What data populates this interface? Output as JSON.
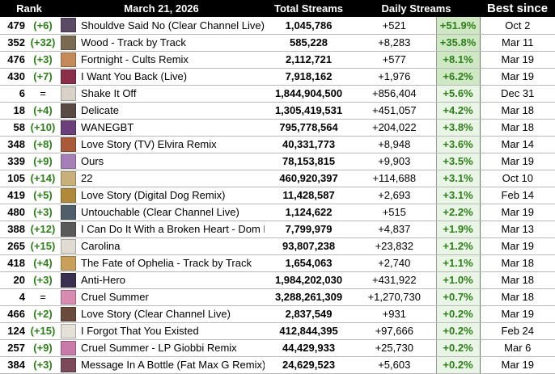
{
  "header": {
    "rank": "Rank",
    "date": "March 21, 2026",
    "total_streams": "Total Streams",
    "daily_streams": "Daily Streams",
    "best_since": "Best since"
  },
  "colors": {
    "change_text": "#2f7d1c",
    "pct_shade_strong": "#cde8c3",
    "pct_shade_light": "#eaf6e5",
    "header_bg": "#000000"
  },
  "rows": [
    {
      "rank": "479",
      "change": "(+6)",
      "cover": "#5b4a63",
      "title": "Shouldve Said No (Clear Channel Live)",
      "total": "1,045,786",
      "daily": "+521",
      "pct": "+51.9%",
      "pct_level": 1.0,
      "best": "Oct 2"
    },
    {
      "rank": "352",
      "change": "(+32)",
      "cover": "#7a6a52",
      "title": "Wood - Track by Track",
      "total": "585,228",
      "daily": "+8,283",
      "pct": "+35.8%",
      "pct_level": 0.9,
      "best": "Mar 11"
    },
    {
      "rank": "476",
      "change": "(+3)",
      "cover": "#c58a5a",
      "title": "Fortnight - Cults Remix",
      "total": "2,112,721",
      "daily": "+577",
      "pct": "+8.1%",
      "pct_level": 0.55,
      "best": "Mar 19"
    },
    {
      "rank": "430",
      "change": "(+7)",
      "cover": "#8a2f4a",
      "title": "I Want You Back (Live)",
      "total": "7,918,162",
      "daily": "+1,976",
      "pct": "+6.2%",
      "pct_level": 0.5,
      "best": "Mar 19"
    },
    {
      "rank": "6",
      "change": "=",
      "cover": "#d8d2c8",
      "title": "Shake It Off",
      "total": "1,844,904,500",
      "daily": "+856,404",
      "pct": "+5.6%",
      "pct_level": 0.45,
      "best": "Dec 31"
    },
    {
      "rank": "18",
      "change": "(+4)",
      "cover": "#5a4a44",
      "title": "Delicate",
      "total": "1,305,419,531",
      "daily": "+451,057",
      "pct": "+4.2%",
      "pct_level": 0.4,
      "best": "Mar 18"
    },
    {
      "rank": "58",
      "change": "(+10)",
      "cover": "#6b3f7a",
      "title": "WANEGBT",
      "total": "795,778,564",
      "daily": "+204,022",
      "pct": "+3.8%",
      "pct_level": 0.35,
      "best": "Mar 18"
    },
    {
      "rank": "348",
      "change": "(+8)",
      "cover": "#a85a3a",
      "title": "Love Story (TV) Elvira Remix",
      "total": "40,331,773",
      "daily": "+8,948",
      "pct": "+3.6%",
      "pct_level": 0.35,
      "best": "Mar 14"
    },
    {
      "rank": "339",
      "change": "(+9)",
      "cover": "#a77fb7",
      "title": "Ours",
      "total": "78,153,815",
      "daily": "+9,903",
      "pct": "+3.5%",
      "pct_level": 0.35,
      "best": "Mar 19"
    },
    {
      "rank": "105",
      "change": "(+14)",
      "cover": "#c8b07a",
      "title": "22",
      "total": "460,920,397",
      "daily": "+114,688",
      "pct": "+3.1%",
      "pct_level": 0.3,
      "best": "Oct 10"
    },
    {
      "rank": "419",
      "change": "(+5)",
      "cover": "#b08a3a",
      "title": "Love Story (Digital Dog Remix)",
      "total": "11,428,587",
      "daily": "+2,693",
      "pct": "+3.1%",
      "pct_level": 0.3,
      "best": "Feb 14"
    },
    {
      "rank": "480",
      "change": "(+3)",
      "cover": "#4f5f6a",
      "title": "Untouchable (Clear Channel Live)",
      "total": "1,124,622",
      "daily": "+515",
      "pct": "+2.2%",
      "pct_level": 0.25,
      "best": "Mar 19"
    },
    {
      "rank": "388",
      "change": "(+12)",
      "cover": "#5a5a5a",
      "title": "I Can Do It With a Broken Heart - Dom Dolla Remix",
      "total": "7,799,979",
      "daily": "+4,837",
      "pct": "+1.9%",
      "pct_level": 0.2,
      "best": "Mar 13"
    },
    {
      "rank": "265",
      "change": "(+15)",
      "cover": "#e0dcd4",
      "title": "Carolina",
      "total": "93,807,238",
      "daily": "+23,832",
      "pct": "+1.2%",
      "pct_level": 0.15,
      "best": "Mar 19"
    },
    {
      "rank": "418",
      "change": "(+4)",
      "cover": "#c9a05a",
      "title": "The Fate of Ophelia - Track by Track",
      "total": "1,654,063",
      "daily": "+2,740",
      "pct": "+1.1%",
      "pct_level": 0.15,
      "best": "Mar 18"
    },
    {
      "rank": "20",
      "change": "(+3)",
      "cover": "#3a3050",
      "title": "Anti-Hero",
      "total": "1,984,202,030",
      "daily": "+431,922",
      "pct": "+1.0%",
      "pct_level": 0.12,
      "best": "Mar 18"
    },
    {
      "rank": "4",
      "change": "=",
      "cover": "#d88ab0",
      "title": "Cruel Summer",
      "total": "3,288,261,309",
      "daily": "+1,270,730",
      "pct": "+0.7%",
      "pct_level": 0.08,
      "best": "Mar 18"
    },
    {
      "rank": "466",
      "change": "(+2)",
      "cover": "#6a4a3a",
      "title": "Love Story (Clear Channel Live)",
      "total": "2,837,549",
      "daily": "+931",
      "pct": "+0.2%",
      "pct_level": 0.05,
      "best": "Mar 19"
    },
    {
      "rank": "124",
      "change": "(+15)",
      "cover": "#e6e1d8",
      "title": "I Forgot That You Existed",
      "total": "412,844,395",
      "daily": "+97,666",
      "pct": "+0.2%",
      "pct_level": 0.05,
      "best": "Feb 24"
    },
    {
      "rank": "257",
      "change": "(+9)",
      "cover": "#c87aa8",
      "title": "Cruel Summer - LP Giobbi Remix",
      "total": "44,429,933",
      "daily": "+25,730",
      "pct": "+0.2%",
      "pct_level": 0.05,
      "best": "Mar 6"
    },
    {
      "rank": "384",
      "change": "(+3)",
      "cover": "#7a4a5a",
      "title": "Message In A Bottle (Fat Max G Remix)",
      "total": "24,629,523",
      "daily": "+5,603",
      "pct": "+0.2%",
      "pct_level": 0.05,
      "best": "Mar 19"
    }
  ]
}
